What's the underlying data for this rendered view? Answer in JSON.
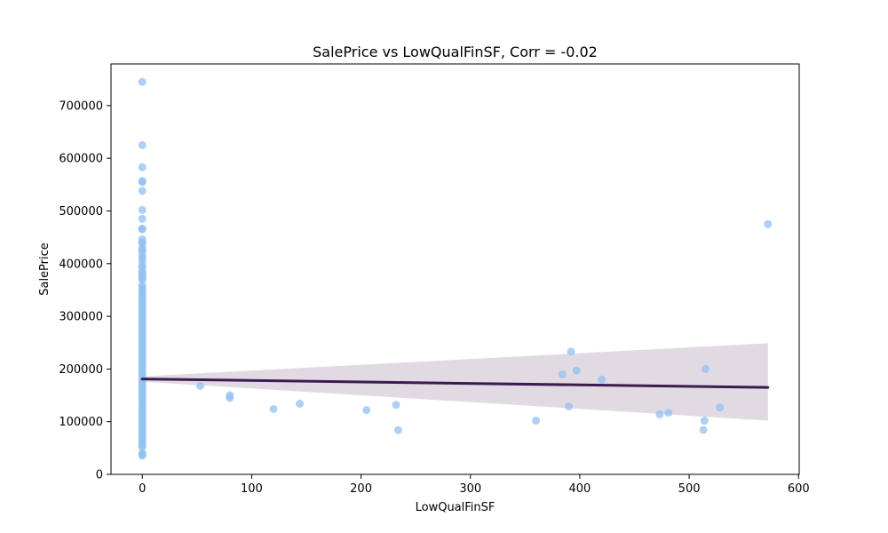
{
  "chart_data": {
    "type": "scatter",
    "title": "SalePrice vs LowQualFinSF, Corr = -0.02",
    "xlabel": "LowQualFinSF",
    "ylabel": "SalePrice",
    "xlim": [
      -28.6,
      600.6
    ],
    "ylim": [
      0,
      779000
    ],
    "xticks": [
      0,
      100,
      200,
      300,
      400,
      500,
      600
    ],
    "yticks": [
      0,
      100000,
      200000,
      300000,
      400000,
      500000,
      600000,
      700000
    ],
    "grid": false,
    "colors": {
      "points": "#92c0f0",
      "points_alpha": 0.75,
      "regression_line": "#3b1b52",
      "confidence_band": "#d8cdd9"
    },
    "series": [
      {
        "points": [
          [
            0,
            745000
          ],
          [
            0,
            625000
          ],
          [
            0,
            582933
          ],
          [
            0,
            556581
          ],
          [
            0,
            555000
          ],
          [
            0,
            538000
          ],
          [
            0,
            501837
          ],
          [
            0,
            485000
          ],
          [
            0,
            466500
          ],
          [
            0,
            465000
          ],
          [
            0,
            446261
          ],
          [
            0,
            440000
          ],
          [
            0,
            438780
          ],
          [
            0,
            430000
          ],
          [
            0,
            426000
          ],
          [
            0,
            423000
          ],
          [
            0,
            415298
          ],
          [
            0,
            410000
          ],
          [
            0,
            403000
          ],
          [
            0,
            395000
          ],
          [
            0,
            392500
          ],
          [
            0,
            385000
          ],
          [
            0,
            381000
          ],
          [
            0,
            377500
          ],
          [
            0,
            372500
          ],
          [
            0,
            369900
          ],
          [
            0,
            359100
          ],
          [
            0,
            354000
          ],
          [
            0,
            350000
          ],
          [
            0,
            345000
          ],
          [
            0,
            340000
          ],
          [
            0,
            335000
          ],
          [
            0,
            330000
          ],
          [
            0,
            325000
          ],
          [
            0,
            320000
          ],
          [
            0,
            315000
          ],
          [
            0,
            310000
          ],
          [
            0,
            305000
          ],
          [
            0,
            300000
          ],
          [
            0,
            295000
          ],
          [
            0,
            290000
          ],
          [
            0,
            285000
          ],
          [
            0,
            280000
          ],
          [
            0,
            275000
          ],
          [
            0,
            270000
          ],
          [
            0,
            265000
          ],
          [
            0,
            260000
          ],
          [
            0,
            255000
          ],
          [
            0,
            250000
          ],
          [
            0,
            245000
          ],
          [
            0,
            240000
          ],
          [
            0,
            235000
          ],
          [
            0,
            230000
          ],
          [
            0,
            225000
          ],
          [
            0,
            220000
          ],
          [
            0,
            215000
          ],
          [
            0,
            210000
          ],
          [
            0,
            205000
          ],
          [
            0,
            200000
          ],
          [
            0,
            195000
          ],
          [
            0,
            190000
          ],
          [
            0,
            185000
          ],
          [
            0,
            180000
          ],
          [
            0,
            175000
          ],
          [
            0,
            170000
          ],
          [
            0,
            165000
          ],
          [
            0,
            160000
          ],
          [
            0,
            155000
          ],
          [
            0,
            150000
          ],
          [
            0,
            145000
          ],
          [
            0,
            140000
          ],
          [
            0,
            135000
          ],
          [
            0,
            130000
          ],
          [
            0,
            125000
          ],
          [
            0,
            120000
          ],
          [
            0,
            115000
          ],
          [
            0,
            110000
          ],
          [
            0,
            105000
          ],
          [
            0,
            100000
          ],
          [
            0,
            95000
          ],
          [
            0,
            90000
          ],
          [
            0,
            85000
          ],
          [
            0,
            80000
          ],
          [
            0,
            75000
          ],
          [
            0,
            70000
          ],
          [
            0,
            65000
          ],
          [
            0,
            60000
          ],
          [
            0,
            55000
          ],
          [
            0,
            52000
          ],
          [
            0,
            40000
          ],
          [
            0,
            37900
          ],
          [
            0,
            35311
          ],
          [
            53,
            168000
          ],
          [
            80,
            150000
          ],
          [
            80,
            145000
          ],
          [
            120,
            124000
          ],
          [
            144,
            134000
          ],
          [
            205,
            122000
          ],
          [
            232,
            132000
          ],
          [
            234,
            84000
          ],
          [
            360,
            102000
          ],
          [
            384,
            190000
          ],
          [
            390,
            129000
          ],
          [
            392,
            233000
          ],
          [
            397,
            197000
          ],
          [
            420,
            180000
          ],
          [
            473,
            114000
          ],
          [
            481,
            117000
          ],
          [
            513,
            84500
          ],
          [
            514,
            102000
          ],
          [
            515,
            200000
          ],
          [
            528,
            127000
          ],
          [
            572,
            475000
          ]
        ]
      }
    ],
    "regression": {
      "x": [
        0,
        572
      ],
      "y": [
        181000,
        165000
      ]
    },
    "confidence_band": {
      "x": [
        0,
        572
      ],
      "upper": [
        186000,
        249000
      ],
      "lower": [
        176000,
        102000
      ]
    }
  }
}
